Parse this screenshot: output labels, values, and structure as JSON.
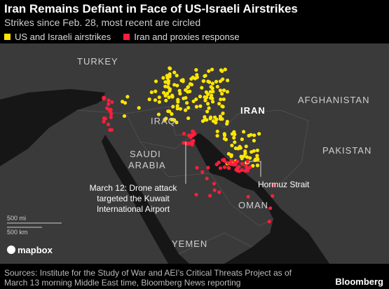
{
  "header": {
    "title": "Iran Remains Defiant in Face of US-Israeli Airstrikes",
    "subtitle": "Strikes since Feb. 28, most recent are circled"
  },
  "legend": [
    {
      "label": "US and Israeli airstrikes",
      "color": "#ffe600"
    },
    {
      "label": "Iran and proxies response",
      "color": "#ff1e3c"
    }
  ],
  "map": {
    "labels": [
      "TURKEY",
      "IRAQ",
      "IRAN",
      "AFGHANISTAN",
      "PAKISTAN",
      "OMAN",
      "YEMEN"
    ],
    "saudi_arabia": [
      "SAUDI",
      "ARABIA"
    ],
    "annotation": [
      "March 12: Drone attack",
      "targeted the Kuwait",
      "International Airport"
    ],
    "hormuz": "Hormuz Strait",
    "scale": [
      "500 mi",
      "500 km"
    ],
    "attribution": "mapbox"
  },
  "footer": {
    "source": [
      "Sources: Institute for the Study of War and AEI’s Critical Threats Project as of",
      "March 13 morning Middle East time, Bloomberg News reporting"
    ],
    "brand": "Bloomberg"
  }
}
